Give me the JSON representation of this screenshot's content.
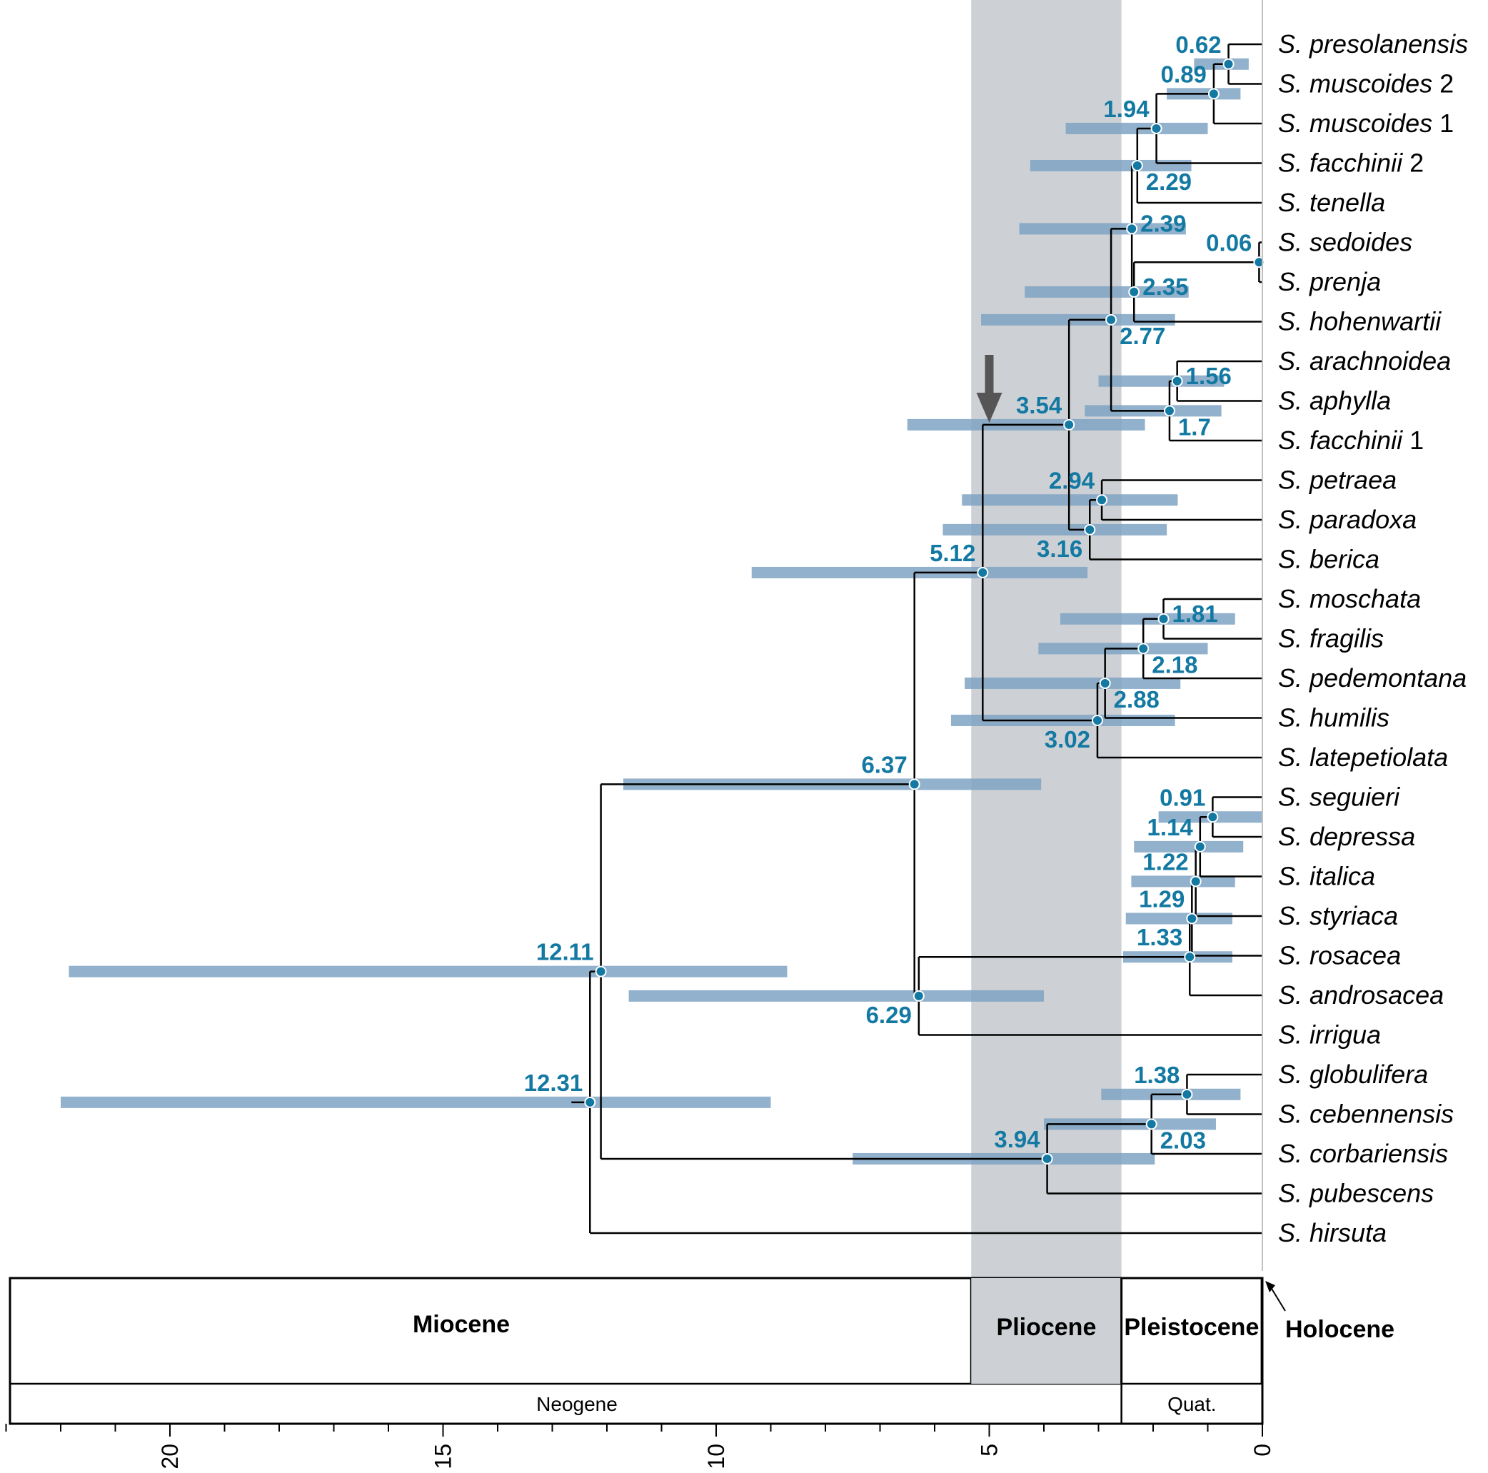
{
  "colors": {
    "branch": "#000000",
    "hpd_bar": "#7fa3c3",
    "node_fill": "#1379a2",
    "node_label": "#1379a2",
    "pliocene_band": "#cdd1d5",
    "arrow": "#555555"
  },
  "taxa": [
    {
      "genus": "S.",
      "epithet": "presolanensis",
      "suffix": ""
    },
    {
      "genus": "S.",
      "epithet": "muscoides",
      "suffix": " 2"
    },
    {
      "genus": "S.",
      "epithet": "muscoides",
      "suffix": " 1"
    },
    {
      "genus": "S.",
      "epithet": "facchinii",
      "suffix": " 2"
    },
    {
      "genus": "S.",
      "epithet": "tenella",
      "suffix": ""
    },
    {
      "genus": "S.",
      "epithet": "sedoides",
      "suffix": ""
    },
    {
      "genus": "S.",
      "epithet": "prenja",
      "suffix": ""
    },
    {
      "genus": "S.",
      "epithet": "hohenwartii",
      "suffix": ""
    },
    {
      "genus": "S.",
      "epithet": "arachnoidea",
      "suffix": ""
    },
    {
      "genus": "S.",
      "epithet": "aphylla",
      "suffix": ""
    },
    {
      "genus": "S.",
      "epithet": "facchinii",
      "suffix": " 1"
    },
    {
      "genus": "S.",
      "epithet": "petraea",
      "suffix": ""
    },
    {
      "genus": "S.",
      "epithet": "paradoxa",
      "suffix": ""
    },
    {
      "genus": "S.",
      "epithet": "berica",
      "suffix": ""
    },
    {
      "genus": "S.",
      "epithet": "moschata",
      "suffix": ""
    },
    {
      "genus": "S.",
      "epithet": "fragilis",
      "suffix": ""
    },
    {
      "genus": "S.",
      "epithet": "pedemontana",
      "suffix": ""
    },
    {
      "genus": "S.",
      "epithet": "humilis",
      "suffix": ""
    },
    {
      "genus": "S.",
      "epithet": "latepetiolata",
      "suffix": ""
    },
    {
      "genus": "S.",
      "epithet": "seguieri",
      "suffix": ""
    },
    {
      "genus": "S.",
      "epithet": "depressa",
      "suffix": ""
    },
    {
      "genus": "S.",
      "epithet": "italica",
      "suffix": ""
    },
    {
      "genus": "S.",
      "epithet": "styriaca",
      "suffix": ""
    },
    {
      "genus": "S.",
      "epithet": "rosacea",
      "suffix": ""
    },
    {
      "genus": "S.",
      "epithet": "androsacea",
      "suffix": ""
    },
    {
      "genus": "S.",
      "epithet": "irrigua",
      "suffix": ""
    },
    {
      "genus": "S.",
      "epithet": "globulifera",
      "suffix": ""
    },
    {
      "genus": "S.",
      "epithet": "cebennensis",
      "suffix": ""
    },
    {
      "genus": "S.",
      "epithet": "corbariensis",
      "suffix": ""
    },
    {
      "genus": "S.",
      "epithet": "pubescens",
      "suffix": ""
    },
    {
      "genus": "S.",
      "epithet": "hirsuta",
      "suffix": ""
    }
  ],
  "nodes": [
    {
      "id": "n1",
      "age": 0.62,
      "label": "0.62",
      "hpd": [
        0.25,
        1.25
      ],
      "children": [
        "t0",
        "t1"
      ]
    },
    {
      "id": "n2",
      "age": 0.89,
      "label": "0.89",
      "hpd": [
        0.4,
        1.75
      ],
      "children": [
        "n1",
        "t2"
      ]
    },
    {
      "id": "n3",
      "age": 1.94,
      "label": "1.94",
      "hpd": [
        1.0,
        3.6
      ],
      "children": [
        "n2",
        "t3"
      ]
    },
    {
      "id": "n4",
      "age": 2.29,
      "label": "2.29",
      "hpd": [
        1.3,
        4.25
      ],
      "children": [
        "n3",
        "t4"
      ]
    },
    {
      "id": "n5",
      "age": 0.06,
      "label": "0.06",
      "hpd": [
        0.0,
        0.1
      ],
      "children": [
        "t5",
        "t6"
      ]
    },
    {
      "id": "n6",
      "age": 2.35,
      "label": "2.35",
      "hpd": [
        1.35,
        4.35
      ],
      "children": [
        "n5",
        "t7"
      ]
    },
    {
      "id": "n7",
      "age": 2.39,
      "label": "2.39",
      "hpd": [
        1.4,
        4.45
      ],
      "children": [
        "n4",
        "n6"
      ]
    },
    {
      "id": "n8",
      "age": 1.56,
      "label": "1.56",
      "hpd": [
        0.7,
        3.0
      ],
      "children": [
        "t8",
        "t9"
      ]
    },
    {
      "id": "n9",
      "age": 1.7,
      "label": "1.7",
      "hpd": [
        0.75,
        3.25
      ],
      "children": [
        "n8",
        "t10"
      ]
    },
    {
      "id": "n10",
      "age": 2.77,
      "label": "2.77",
      "hpd": [
        1.6,
        5.15
      ],
      "children": [
        "n7",
        "n9"
      ]
    },
    {
      "id": "n11",
      "age": 2.94,
      "label": "2.94",
      "hpd": [
        1.55,
        5.5
      ],
      "children": [
        "t11",
        "t12"
      ]
    },
    {
      "id": "n12",
      "age": 3.16,
      "label": "3.16",
      "hpd": [
        1.75,
        5.85
      ],
      "children": [
        "n11",
        "t13"
      ]
    },
    {
      "id": "n13",
      "age": 3.54,
      "label": "3.54",
      "hpd": [
        2.15,
        6.5
      ],
      "children": [
        "n10",
        "n12"
      ]
    },
    {
      "id": "n14",
      "age": 1.81,
      "label": "1.81",
      "hpd": [
        0.5,
        3.7
      ],
      "children": [
        "t14",
        "t15"
      ]
    },
    {
      "id": "n15",
      "age": 2.18,
      "label": "2.18",
      "hpd": [
        1.0,
        4.1
      ],
      "children": [
        "n14",
        "t16"
      ]
    },
    {
      "id": "n16",
      "age": 2.88,
      "label": "2.88",
      "hpd": [
        1.5,
        5.45
      ],
      "children": [
        "n15",
        "t17"
      ]
    },
    {
      "id": "n17",
      "age": 3.02,
      "label": "3.02",
      "hpd": [
        1.6,
        5.7
      ],
      "children": [
        "n16",
        "t18"
      ]
    },
    {
      "id": "n18",
      "age": 5.12,
      "label": "5.12",
      "hpd": [
        3.2,
        9.35
      ],
      "children": [
        "n13",
        "n17"
      ]
    },
    {
      "id": "n19",
      "age": 0.91,
      "label": "0.91",
      "hpd": [
        0.0,
        1.9
      ],
      "children": [
        "t19",
        "t20"
      ]
    },
    {
      "id": "n20",
      "age": 1.14,
      "label": "1.14",
      "hpd": [
        0.35,
        2.35
      ],
      "children": [
        "n19",
        "t21"
      ]
    },
    {
      "id": "n21",
      "age": 1.22,
      "label": "1.22",
      "hpd": [
        0.5,
        2.4
      ],
      "children": [
        "n20",
        "t22"
      ]
    },
    {
      "id": "n22",
      "age": 1.29,
      "label": "1.29",
      "hpd": [
        0.55,
        2.5
      ],
      "children": [
        "n21",
        "t23"
      ]
    },
    {
      "id": "n23",
      "age": 1.33,
      "label": "1.33",
      "hpd": [
        0.55,
        2.55
      ],
      "children": [
        "n22",
        "t24"
      ]
    },
    {
      "id": "n24",
      "age": 6.29,
      "label": "6.29",
      "hpd": [
        4.0,
        11.6
      ],
      "children": [
        "n23",
        "t25"
      ]
    },
    {
      "id": "n25",
      "age": 6.37,
      "label": "6.37",
      "hpd": [
        4.05,
        11.7
      ],
      "children": [
        "n18",
        "n24"
      ]
    },
    {
      "id": "n26",
      "age": 1.38,
      "label": "1.38",
      "hpd": [
        0.4,
        2.95
      ],
      "children": [
        "t26",
        "t27"
      ]
    },
    {
      "id": "n27",
      "age": 2.03,
      "label": "2.03",
      "hpd": [
        0.85,
        4.0
      ],
      "children": [
        "n26",
        "t28"
      ]
    },
    {
      "id": "n28",
      "age": 3.94,
      "label": "3.94",
      "hpd": [
        1.97,
        7.5
      ],
      "children": [
        "n27",
        "t29"
      ]
    },
    {
      "id": "n29",
      "age": 12.11,
      "label": "12.11",
      "hpd": [
        8.7,
        21.85
      ],
      "children": [
        "n25",
        "n28"
      ]
    },
    {
      "id": "n30",
      "age": 12.31,
      "label": "12.31",
      "hpd": [
        9.0,
        22.0
      ],
      "children": [
        "n29",
        "t30"
      ]
    }
  ],
  "label_positions": {
    "n1": "above-left",
    "n2": "above-left",
    "n3": "above-left",
    "n4": "below-right",
    "n5": "above-left",
    "n6": "right",
    "n7": "right",
    "n8": "right",
    "n9": "below-right",
    "n10": "below-right",
    "n11": "above-left",
    "n12": "below-left",
    "n13": "above-left",
    "n14": "right",
    "n15": "below-right",
    "n16": "below-right",
    "n17": "below-left",
    "n18": "above-left",
    "n19": "above-left",
    "n20": "above-left",
    "n21": "above-left",
    "n22": "above-left",
    "n23": "above-left",
    "n24": "below-left",
    "n25": "above-left",
    "n26": "above-left",
    "n27": "below-right",
    "n28": "above-left",
    "n29": "above-left",
    "n30": "above-left"
  },
  "highlight": {
    "name": "Pliocene",
    "from_age": 5.33,
    "to_age": 2.58
  },
  "arrow_age": 5.0,
  "epochs": [
    {
      "name": "Miocene",
      "from": 23.03,
      "to": 5.33
    },
    {
      "name": "Pliocene",
      "from": 5.33,
      "to": 2.58
    },
    {
      "name": "Pleistocene",
      "from": 2.58,
      "to": 0.0117
    },
    {
      "name": "Holocene",
      "from": 0.0117,
      "to": 0
    }
  ],
  "periods": [
    {
      "name": "Neogene",
      "from": 23.03,
      "to": 2.58
    },
    {
      "name": "Quat.",
      "from": 2.58,
      "to": 0
    }
  ],
  "axis": {
    "min": 0,
    "max": 23,
    "major_ticks": [
      0,
      5,
      10,
      15,
      20
    ],
    "minor_step": 1
  }
}
